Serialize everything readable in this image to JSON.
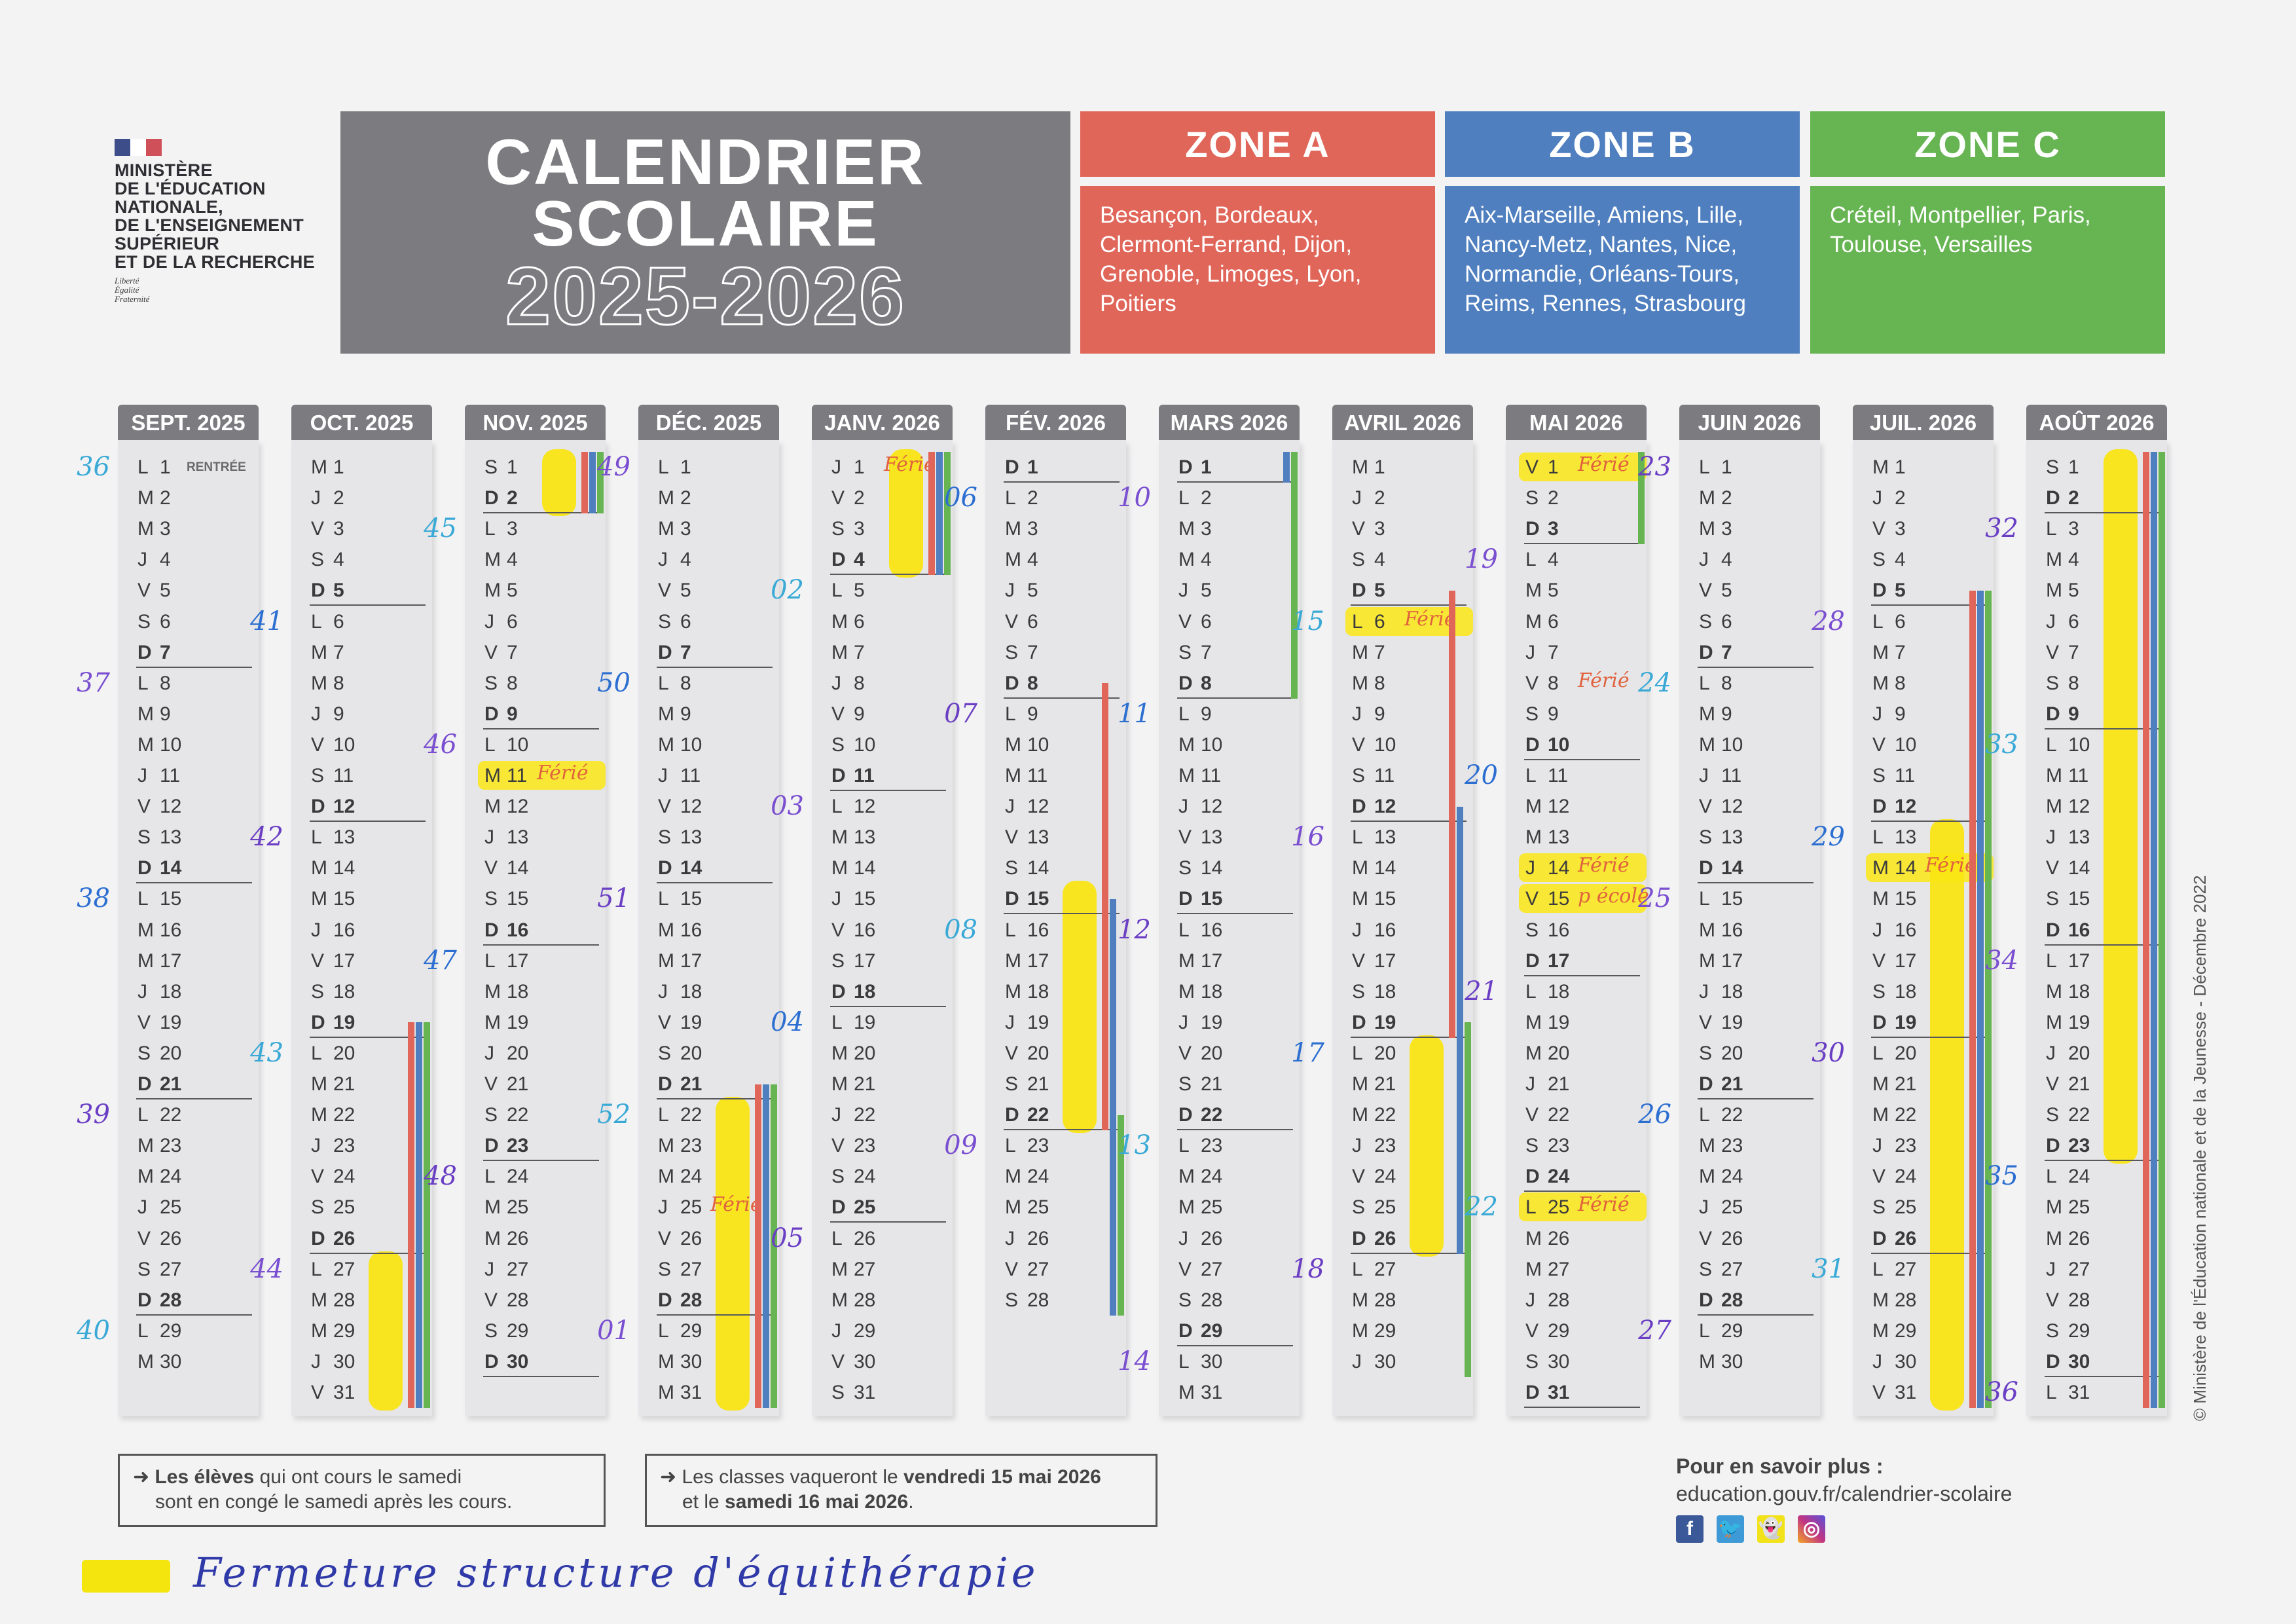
{
  "ministry": {
    "lines": [
      "MINISTÈRE",
      "DE L'ÉDUCATION",
      "NATIONALE,",
      "DE L'ENSEIGNEMENT",
      "SUPÉRIEUR",
      "ET DE LA RECHERCHE"
    ],
    "devise": [
      "Liberté",
      "Égalité",
      "Fraternité"
    ]
  },
  "title": {
    "line1": "CALENDRIER",
    "line2": "SCOLAIRE",
    "year": "2025-2026"
  },
  "zones": [
    {
      "name": "ZONE A",
      "color": "#e0665a",
      "cities": "Besançon, Bordeaux, Clermont-Ferrand, Dijon, Grenoble, Limoges, Lyon, Poitiers"
    },
    {
      "name": "ZONE B",
      "color": "#4f7fbf",
      "cities": "Aix-Marseille, Amiens, Lille, Nancy-Metz, Nantes, Nice, Normandie, Orléans-Tours, Reims, Rennes, Strasbourg"
    },
    {
      "name": "ZONE C",
      "color": "#67b552",
      "cities": "Créteil, Montpellier, Paris, Toulouse, Versailles"
    }
  ],
  "weekday_letters": [
    "L",
    "M",
    "M",
    "J",
    "V",
    "S",
    "D"
  ],
  "months": [
    {
      "label": "SEPT. 2025",
      "start": 0,
      "days": 30,
      "weeks": {
        "1": "36",
        "8": "37",
        "15": "38",
        "22": "39",
        "29": "40"
      },
      "printed": {
        "1": "RENTRÉE"
      }
    },
    {
      "label": "OCT. 2025",
      "start": 2,
      "days": 31,
      "weeks": {
        "6": "41",
        "13": "42",
        "20": "43",
        "27": "44"
      }
    },
    {
      "label": "NOV. 2025",
      "start": 5,
      "days": 30,
      "weeks": {
        "3": "45",
        "10": "46",
        "17": "47",
        "24": "48"
      }
    },
    {
      "label": "DÉC. 2025",
      "start": 0,
      "days": 31,
      "weeks": {
        "1": "49",
        "8": "50",
        "15": "51",
        "22": "52",
        "29": "01"
      }
    },
    {
      "label": "JANV. 2026",
      "start": 3,
      "days": 31,
      "weeks": {
        "5": "02",
        "12": "03",
        "19": "04",
        "26": "05"
      }
    },
    {
      "label": "FÉV. 2026",
      "start": 6,
      "days": 28,
      "weeks": {
        "2": "06",
        "9": "07",
        "16": "08",
        "23": "09"
      }
    },
    {
      "label": "MARS 2026",
      "start": 6,
      "days": 31,
      "weeks": {
        "2": "10",
        "9": "11",
        "16": "12",
        "23": "13",
        "30": "14"
      }
    },
    {
      "label": "AVRIL 2026",
      "start": 2,
      "days": 30,
      "weeks": {
        "6": "15",
        "13": "16",
        "20": "17",
        "27": "18"
      }
    },
    {
      "label": "MAI 2026",
      "start": 4,
      "days": 31,
      "weeks": {
        "4": "19",
        "11": "20",
        "18": "21",
        "25": "22"
      }
    },
    {
      "label": "JUIN 2026",
      "start": 0,
      "days": 30,
      "weeks": {
        "1": "23",
        "8": "24",
        "15": "25",
        "22": "26",
        "29": "27"
      }
    },
    {
      "label": "JUIL. 2026",
      "start": 2,
      "days": 31,
      "weeks": {
        "6": "28",
        "13": "29",
        "20": "30",
        "27": "31"
      }
    },
    {
      "label": "AOÛT 2026",
      "start": 5,
      "days": 31,
      "weeks": {
        "3": "32",
        "10": "33",
        "17": "34",
        "24": "35",
        "31": "36"
      }
    }
  ],
  "handwritten_notes": [
    {
      "month": 2,
      "day": 11,
      "text": "Férié"
    },
    {
      "month": 3,
      "day": 25,
      "text": "Férié"
    },
    {
      "month": 4,
      "day": 1,
      "text": "Férié"
    },
    {
      "month": 7,
      "day": 6,
      "text": "Férié"
    },
    {
      "month": 8,
      "day": 1,
      "text": "Férié"
    },
    {
      "month": 8,
      "day": 8,
      "text": "Férié"
    },
    {
      "month": 8,
      "day": 14,
      "text": "Férié"
    },
    {
      "month": 8,
      "day": 15,
      "text": "p école"
    },
    {
      "month": 8,
      "day": 25,
      "text": "Férié"
    },
    {
      "month": 10,
      "day": 14,
      "text": "Férié"
    }
  ],
  "week_number_colors": [
    "#7a4fd0",
    "#3aa9d6",
    "#6b3fc4",
    "#2d6fd1"
  ],
  "highlight_days": [
    [
      2,
      11
    ],
    [
      7,
      6
    ],
    [
      8,
      1
    ],
    [
      8,
      14
    ],
    [
      8,
      15
    ],
    [
      8,
      25
    ],
    [
      10,
      14
    ]
  ],
  "highlight_ranges": [
    [
      1,
      27,
      31
    ],
    [
      2,
      1,
      2
    ],
    [
      3,
      22,
      31
    ],
    [
      4,
      1,
      4
    ],
    [
      5,
      15,
      22
    ],
    [
      7,
      20,
      26
    ],
    [
      10,
      13,
      31
    ],
    [
      11,
      1,
      23
    ]
  ],
  "vacations": [
    {
      "zone": 0,
      "spans": [
        [
          1,
          19,
          31
        ],
        [
          2,
          1,
          2
        ],
        [
          3,
          21,
          31
        ],
        [
          4,
          1,
          4
        ],
        [
          5,
          8,
          22
        ],
        [
          7,
          5,
          19
        ],
        [
          10,
          5,
          31
        ],
        [
          11,
          1,
          31
        ]
      ]
    },
    {
      "zone": 1,
      "spans": [
        [
          1,
          19,
          31
        ],
        [
          2,
          1,
          2
        ],
        [
          3,
          21,
          31
        ],
        [
          4,
          1,
          4
        ],
        [
          5,
          15,
          28
        ],
        [
          6,
          1,
          1
        ],
        [
          7,
          12,
          26
        ],
        [
          10,
          5,
          31
        ],
        [
          11,
          1,
          31
        ]
      ]
    },
    {
      "zone": 2,
      "spans": [
        [
          1,
          19,
          31
        ],
        [
          2,
          1,
          2
        ],
        [
          3,
          21,
          31
        ],
        [
          4,
          1,
          4
        ],
        [
          5,
          22,
          28
        ],
        [
          6,
          1,
          8
        ],
        [
          7,
          19,
          30
        ],
        [
          8,
          1,
          3
        ],
        [
          10,
          5,
          31
        ],
        [
          11,
          1,
          31
        ]
      ]
    }
  ],
  "footer": {
    "note1_bold": "Les élèves",
    "note1_rest": " qui ont cours le samedi",
    "note1_line2": "sont en congé le samedi après les cours.",
    "note2_a": "Les classes vaqueront le ",
    "note2_b": "vendredi 15 mai 2026",
    "note2_c": "et le ",
    "note2_d": "samedi 16 mai 2026",
    "more_title": "Pour en savoir plus :",
    "more_url": "education.gouv.fr/calendrier-scolaire",
    "legend": "Fermeture structure d'équithérapie",
    "copyright": "© Ministère de l'Éducation nationale et de la Jeunesse - Décembre 2022"
  },
  "highlight_color": "#f4e50e"
}
